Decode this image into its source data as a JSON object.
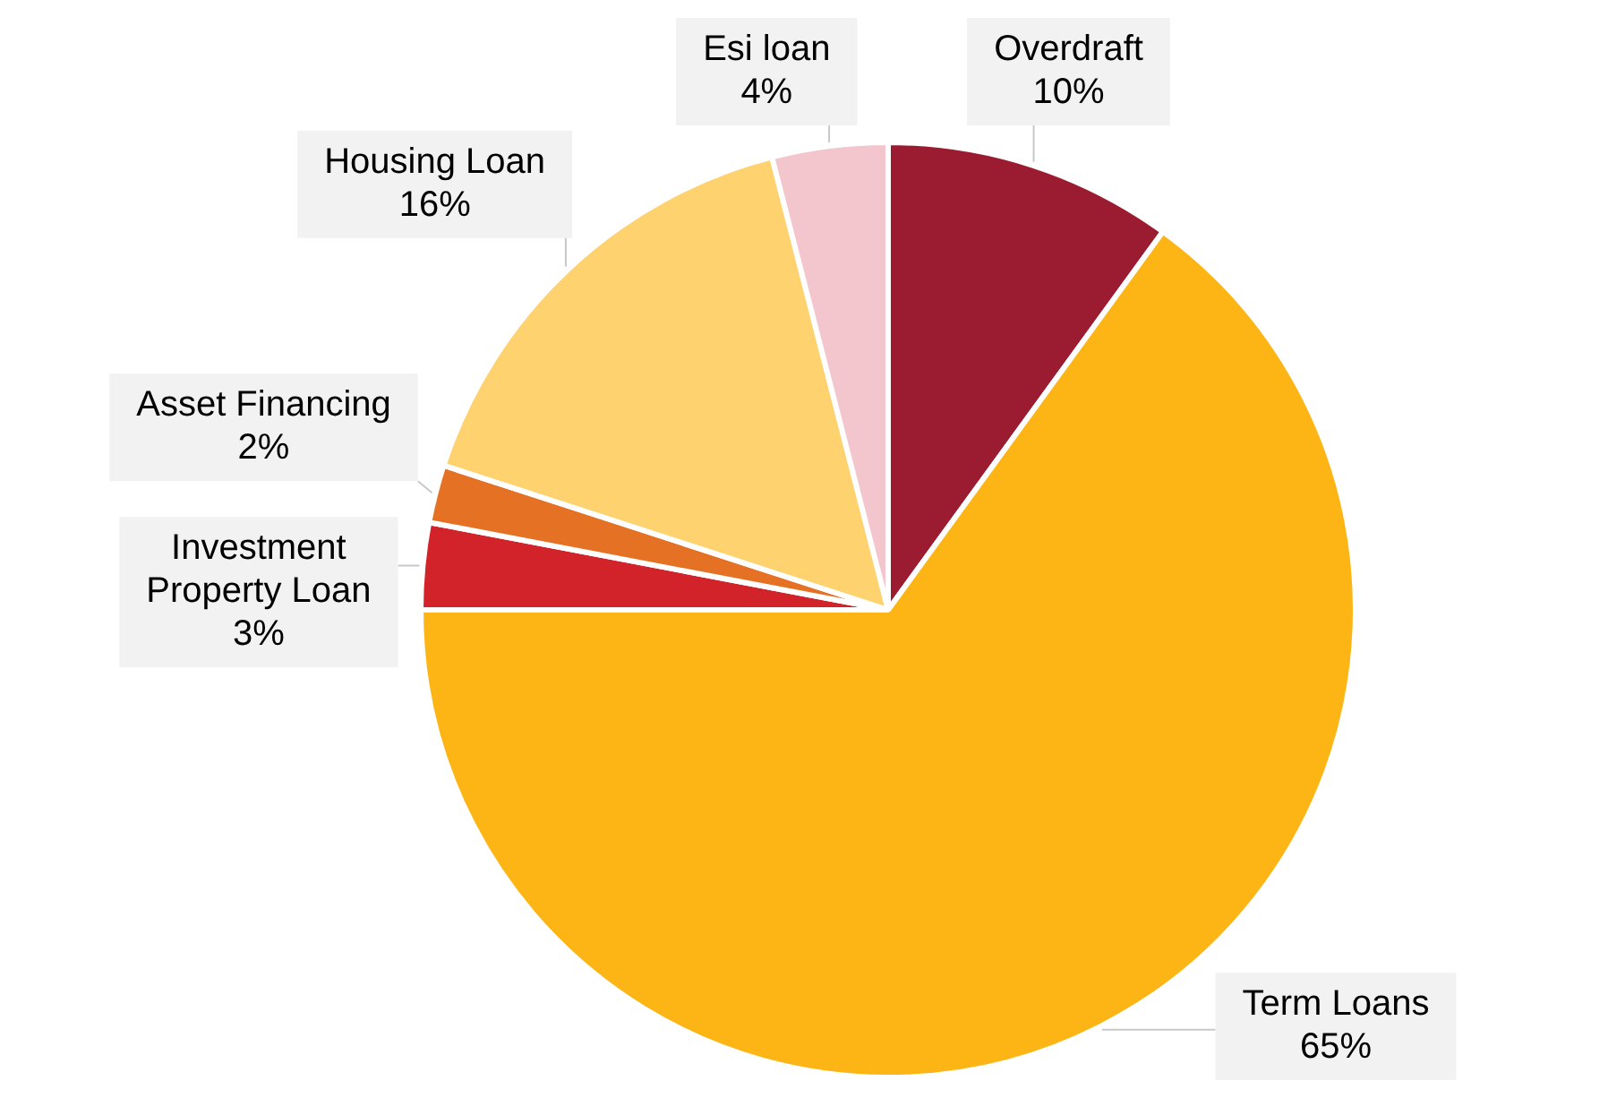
{
  "chart_data": {
    "type": "pie",
    "categories": [
      "Overdraft",
      "Term Loans",
      "Investment Property Loan",
      "Asset Financing",
      "Housing Loan",
      "Esi loan"
    ],
    "values": [
      10,
      65,
      3,
      2,
      16,
      4
    ],
    "value_labels": [
      "10%",
      "65%",
      "3%",
      "2%",
      "16%",
      "4%"
    ],
    "colors": [
      "#9b1c31",
      "#fdb515",
      "#d2232a",
      "#e57125",
      "#ffd270",
      "#f3c6cd"
    ],
    "legend": false
  }
}
